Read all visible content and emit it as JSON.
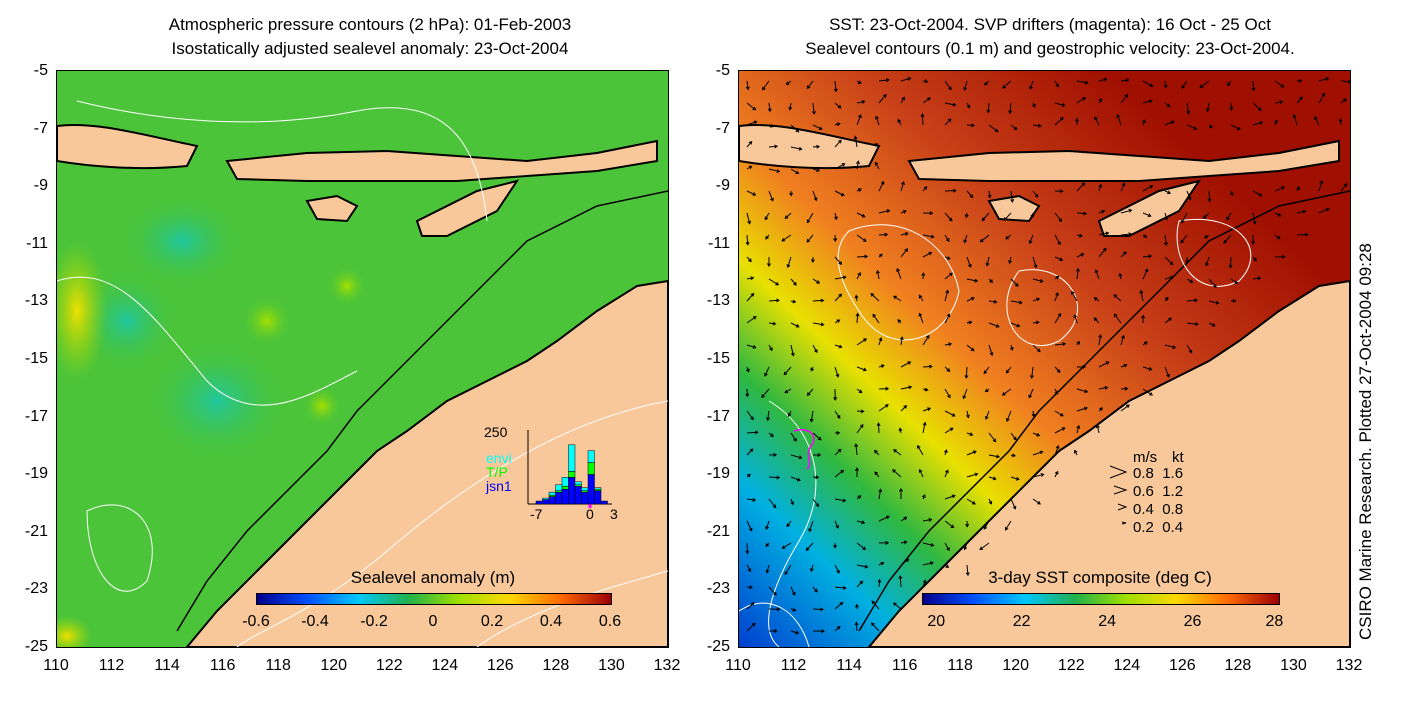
{
  "left_panel": {
    "title_line1": "Atmospheric pressure contours (2 hPa): 01-Feb-2003",
    "title_line2": "Isostatically adjusted sealevel anomaly: 23-Oct-2004",
    "colorbar_label": "Sealevel anomaly (m)",
    "colorbar_ticks": [
      "-0.6",
      "-0.4",
      "-0.2",
      "0",
      "0.2",
      "0.4",
      "0.6"
    ],
    "colorbar_colors": [
      "#00008b",
      "#0050ff",
      "#00c8ff",
      "#22b14c",
      "#a0e000",
      "#ffd800",
      "#ff6a00",
      "#9b0000"
    ],
    "histogram": {
      "y_max_label": "250",
      "x_tick_labels": [
        "-7",
        "0",
        "3"
      ],
      "legend": [
        {
          "label": "envi",
          "color": "#00ffff"
        },
        {
          "label": "T/P",
          "color": "#00ff00"
        },
        {
          "label": "jsn1",
          "color": "#0000ff"
        }
      ],
      "bars": [
        {
          "envi": 0,
          "tp": 0,
          "jsn1": 10
        },
        {
          "envi": 5,
          "tp": 0,
          "jsn1": 15
        },
        {
          "envi": 10,
          "tp": 5,
          "jsn1": 25
        },
        {
          "envi": 20,
          "tp": 5,
          "jsn1": 40
        },
        {
          "envi": 30,
          "tp": 10,
          "jsn1": 50
        },
        {
          "envi": 90,
          "tp": 20,
          "jsn1": 90
        },
        {
          "envi": 10,
          "tp": 5,
          "jsn1": 60
        },
        {
          "envi": 10,
          "tp": 5,
          "jsn1": 40
        },
        {
          "envi": 40,
          "tp": 40,
          "jsn1": 100
        },
        {
          "envi": 5,
          "tp": 5,
          "jsn1": 45
        },
        {
          "envi": 0,
          "tp": 0,
          "jsn1": 10
        }
      ]
    }
  },
  "right_panel": {
    "title_line1": "SST: 23-Oct-2004. SVP drifters (magenta): 16 Oct - 25 Oct",
    "title_line2": "Sealevel contours (0.1 m) and geostrophic velocity: 23-Oct-2004.",
    "colorbar_label": "3-day SST composite (deg C)",
    "colorbar_ticks": [
      "20",
      "22",
      "24",
      "26",
      "28"
    ],
    "colorbar_colors": [
      "#00008b",
      "#0050ff",
      "#00c8ff",
      "#22b14c",
      "#a0e000",
      "#ffd800",
      "#ff6a00",
      "#9b0000"
    ],
    "vector_legend": {
      "header_ms": "m/s",
      "header_kt": "kt",
      "rows": [
        {
          "ms": "0.8",
          "kt": "1.6"
        },
        {
          "ms": "0.6",
          "kt": "1.2"
        },
        {
          "ms": "0.4",
          "kt": "0.8"
        },
        {
          "ms": "0.2",
          "kt": "0.4"
        }
      ]
    }
  },
  "axes": {
    "y_ticks": [
      "-5",
      "-7",
      "-9",
      "-11",
      "-13",
      "-15",
      "-17",
      "-19",
      "-21",
      "-23",
      "-25"
    ],
    "x_ticks": [
      "110",
      "112",
      "114",
      "116",
      "118",
      "120",
      "122",
      "124",
      "126",
      "128",
      "130",
      "132"
    ]
  },
  "side_note": "CSIRO Marine Research. Plotted 27-Oct-2004 09:28",
  "colors": {
    "land": "#f8c89a",
    "coast": "#000000",
    "contour": "#ffffff",
    "drifter": "#ff00ff"
  }
}
